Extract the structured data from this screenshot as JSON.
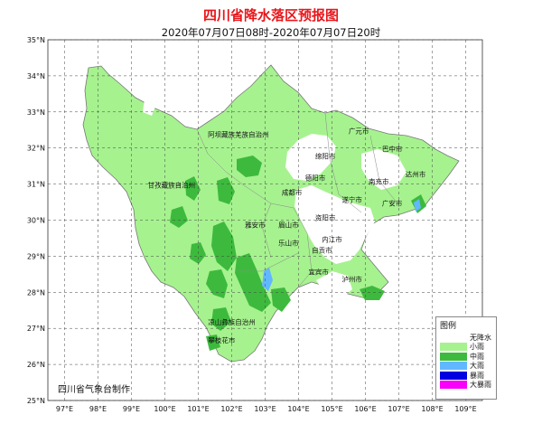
{
  "title": "四川省降水落区预报图",
  "subtitle": "2020年07月07日08时-2020年07月07日20时",
  "credit": "四川省气象台制作",
  "axes": {
    "lat_labels": [
      "35°N",
      "34°N",
      "33°N",
      "32°N",
      "31°N",
      "30°N",
      "29°N",
      "28°N",
      "27°N",
      "26°N",
      "25°N"
    ],
    "lon_labels": [
      "97°E",
      "98°E",
      "99°E",
      "100°E",
      "101°E",
      "102°E",
      "103°E",
      "104°E",
      "105°E",
      "106°E",
      "107°E",
      "108°E",
      "109°E"
    ]
  },
  "regions": [
    {
      "name": "阿坝藏族羌族自治州",
      "lon": 102.2,
      "lat": 32.3
    },
    {
      "name": "甘孜藏族自治州",
      "lon": 100.2,
      "lat": 30.9
    },
    {
      "name": "凉山彝族自治州",
      "lon": 102.0,
      "lat": 27.1
    },
    {
      "name": "攀枝花市",
      "lon": 101.7,
      "lat": 26.6
    },
    {
      "name": "广元市",
      "lon": 105.8,
      "lat": 32.4
    },
    {
      "name": "巴中市",
      "lon": 106.8,
      "lat": 31.9
    },
    {
      "name": "绵阳市",
      "lon": 104.8,
      "lat": 31.7
    },
    {
      "name": "达州市",
      "lon": 107.5,
      "lat": 31.2
    },
    {
      "name": "德阳市",
      "lon": 104.5,
      "lat": 31.1
    },
    {
      "name": "南充市",
      "lon": 106.4,
      "lat": 31.0
    },
    {
      "name": "成都市",
      "lon": 103.8,
      "lat": 30.7
    },
    {
      "name": "遂宁市",
      "lon": 105.6,
      "lat": 30.5
    },
    {
      "name": "广安市",
      "lon": 106.8,
      "lat": 30.4
    },
    {
      "name": "资阳市",
      "lon": 104.8,
      "lat": 30.0
    },
    {
      "name": "雅安市",
      "lon": 102.7,
      "lat": 29.8
    },
    {
      "name": "眉山市",
      "lon": 103.7,
      "lat": 29.8
    },
    {
      "name": "内江市",
      "lon": 105.0,
      "lat": 29.4
    },
    {
      "name": "乐山市",
      "lon": 103.7,
      "lat": 29.3
    },
    {
      "name": "自贡市",
      "lon": 104.7,
      "lat": 29.1
    },
    {
      "name": "宜宾市",
      "lon": 104.6,
      "lat": 28.5
    },
    {
      "name": "泸州市",
      "lon": 105.6,
      "lat": 28.3
    }
  ],
  "legend": {
    "title": "图例",
    "items": [
      {
        "label": "无降水",
        "color": "#ffffff"
      },
      {
        "label": "小雨",
        "color": "#a6f28f"
      },
      {
        "label": "中雨",
        "color": "#3dba3d"
      },
      {
        "label": "大雨",
        "color": "#61b8ff"
      },
      {
        "label": "暴雨",
        "color": "#0000e1"
      },
      {
        "label": "大暴雨",
        "color": "#fa00fa"
      }
    ]
  }
}
